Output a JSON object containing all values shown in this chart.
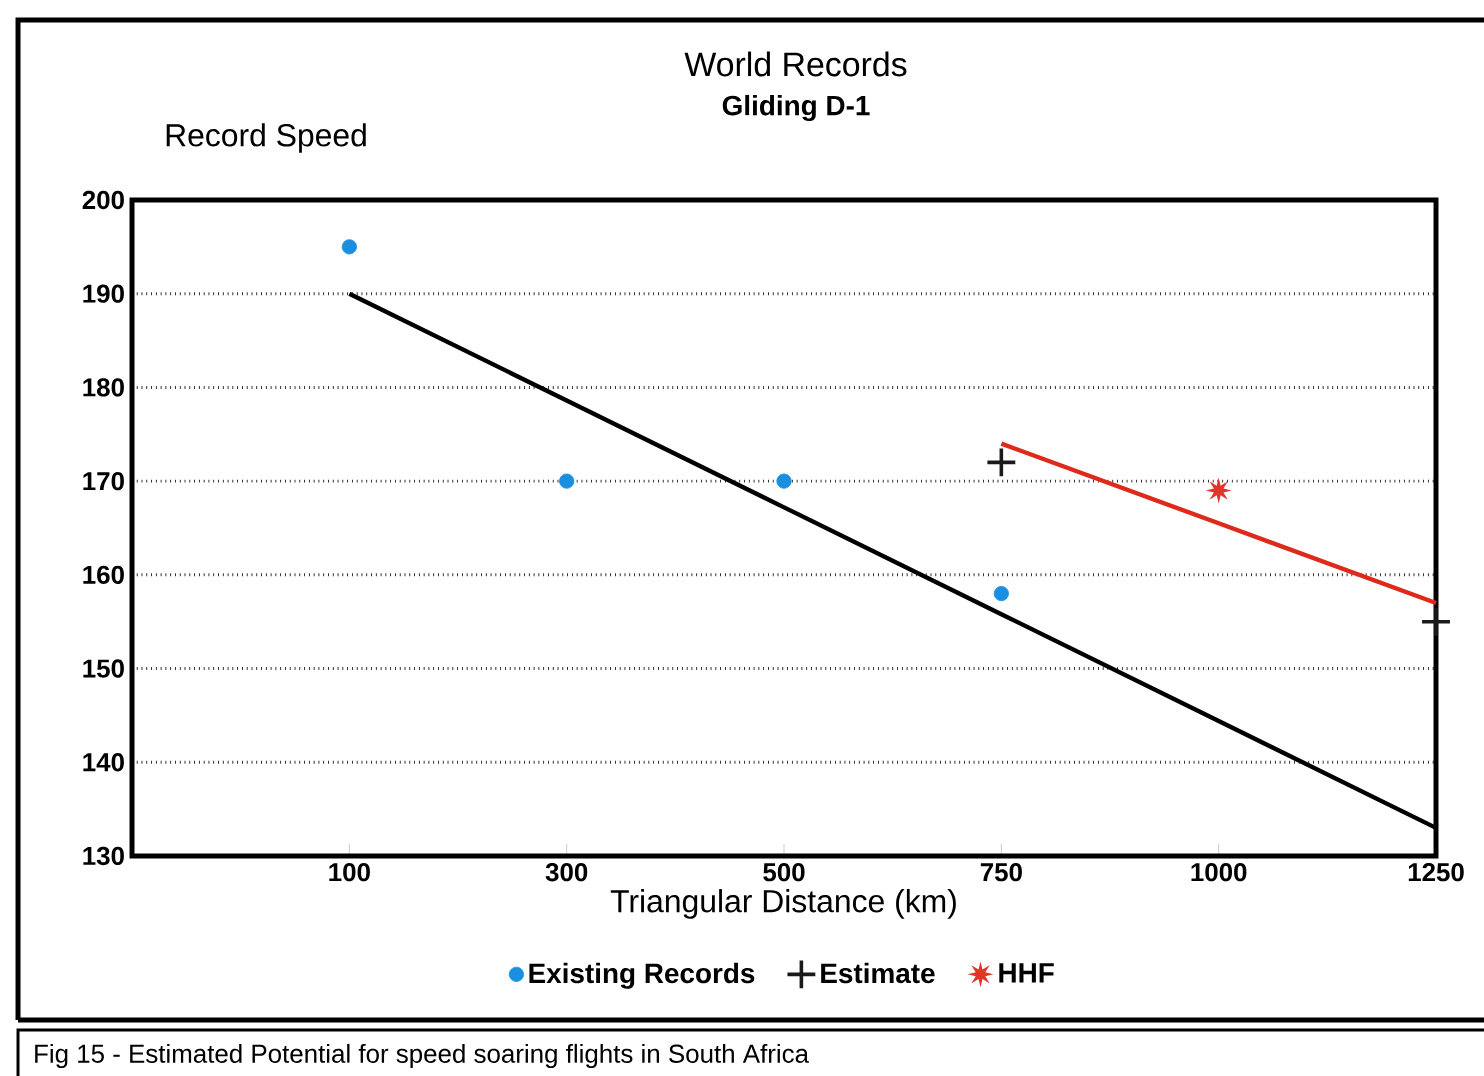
{
  "chart_data": {
    "type": "scatter",
    "title": "World Records",
    "subtitle": "Gliding D-1",
    "ylabel": "Record Speed",
    "xlabel": "Triangular Distance (km)",
    "categories": [
      "100",
      "300",
      "500",
      "750",
      "1000",
      "1250"
    ],
    "series": [
      {
        "name": "Existing Records",
        "marker": "circle",
        "color": "#1a8fe0",
        "values": [
          195,
          170,
          170,
          158,
          null,
          null
        ]
      },
      {
        "name": "Estimate",
        "marker": "cross",
        "color": "#1a1a1a",
        "values": [
          null,
          null,
          null,
          172,
          null,
          155
        ]
      },
      {
        "name": "HHF",
        "marker": "star",
        "color": "#e03528",
        "values": [
          null,
          null,
          null,
          null,
          169,
          null
        ]
      },
      {
        "type": "line",
        "marker": "none",
        "color": "#000000",
        "values": [
          190,
          178.6,
          167.2,
          155.8,
          144.4,
          133
        ]
      },
      {
        "type": "line",
        "marker": "none",
        "color": "#dd2a1a",
        "values": [
          null,
          null,
          null,
          174,
          165.5,
          157
        ]
      }
    ],
    "ylim": [
      130,
      200
    ],
    "yticks": [
      130,
      140,
      150,
      160,
      170,
      180,
      190,
      200
    ],
    "grid": "y",
    "legend": "bottom",
    "annotations": [
      "Fig 15 - Estimated Potential for speed soaring flights in South Africa"
    ]
  }
}
